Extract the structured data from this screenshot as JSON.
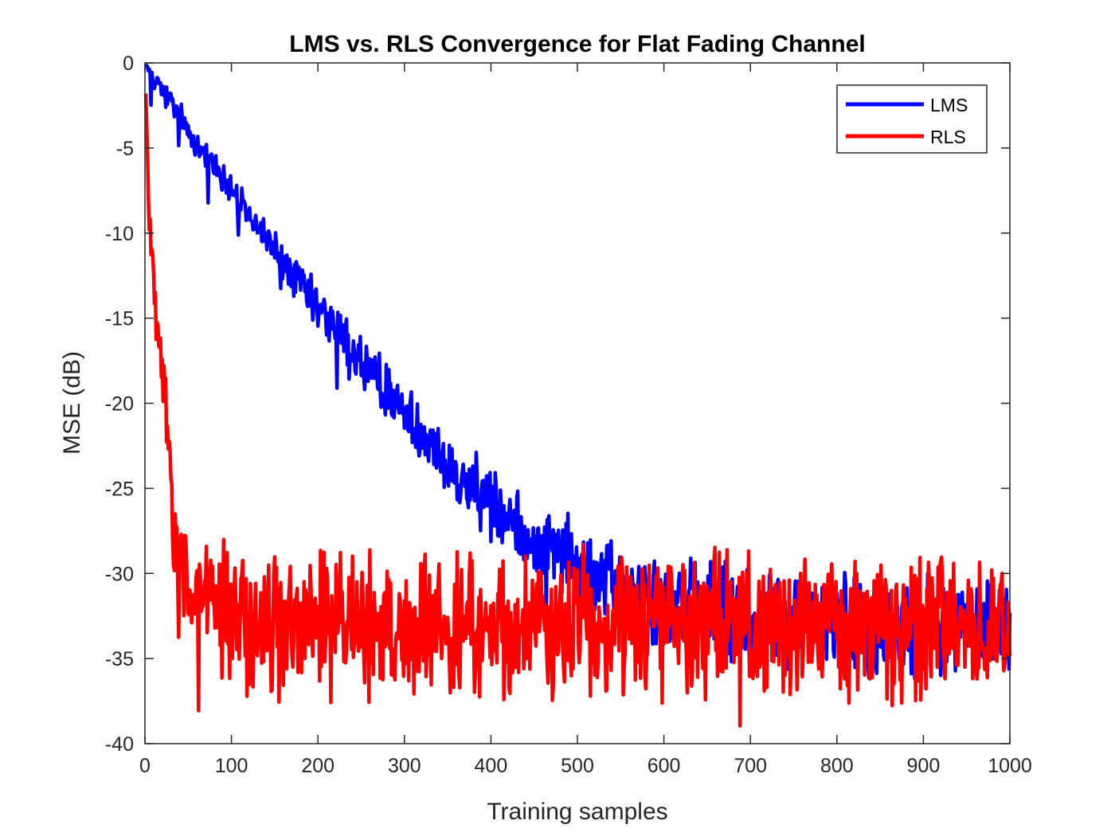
{
  "chart_data": {
    "type": "line",
    "title": "LMS vs. RLS Convergence for Flat Fading Channel",
    "xlabel": "Training samples",
    "ylabel": "MSE (dB)",
    "xlim": [
      0,
      1000
    ],
    "ylim": [
      -40,
      0
    ],
    "xticks": [
      0,
      100,
      200,
      300,
      400,
      500,
      600,
      700,
      800,
      900,
      1000
    ],
    "yticks": [
      0,
      -5,
      -10,
      -15,
      -20,
      -25,
      -30,
      -35,
      -40
    ],
    "xtick_labels": [
      "0",
      "100",
      "200",
      "300",
      "400",
      "500",
      "600",
      "700",
      "800",
      "900",
      "1000"
    ],
    "ytick_labels": [
      "0",
      "-5",
      "-10",
      "-15",
      "-20",
      "-25",
      "-30",
      "-35",
      "-40"
    ],
    "grid": false,
    "legend_position": "top-right",
    "series": [
      {
        "name": "LMS",
        "color": "#0000ff",
        "model": "exponential-decay-with-noise",
        "start_db": 0,
        "floor_db": -33,
        "decay_to_floor_samples": 680,
        "noise_db_peak": 2.5,
        "x": [
          0,
          50,
          100,
          150,
          200,
          250,
          300,
          350,
          400,
          450,
          500,
          550,
          600,
          650,
          700,
          750,
          800,
          850,
          900,
          950,
          1000
        ],
        "y": [
          0,
          -4,
          -7.5,
          -11,
          -14.5,
          -17.5,
          -20.5,
          -23.5,
          -26,
          -28,
          -29.5,
          -30.8,
          -31.6,
          -32.2,
          -32.6,
          -32.8,
          -33,
          -33,
          -33,
          -33,
          -33
        ]
      },
      {
        "name": "RLS",
        "color": "#ff0000",
        "model": "fast-convergence-with-noise",
        "start_db": 0,
        "floor_db": -33,
        "decay_to_floor_samples": 60,
        "noise_db_peak": 3.5,
        "x": [
          0,
          5,
          10,
          15,
          20,
          25,
          30,
          35,
          40,
          50,
          60,
          80,
          100,
          200,
          300,
          400,
          500,
          600,
          700,
          800,
          900,
          1000
        ],
        "y": [
          0,
          -9,
          -13,
          -16,
          -18,
          -21,
          -25,
          -28,
          -29.5,
          -31,
          -31.5,
          -32.2,
          -32.6,
          -33,
          -33,
          -33,
          -33,
          -33,
          -33,
          -33,
          -33,
          -33
        ]
      }
    ]
  }
}
